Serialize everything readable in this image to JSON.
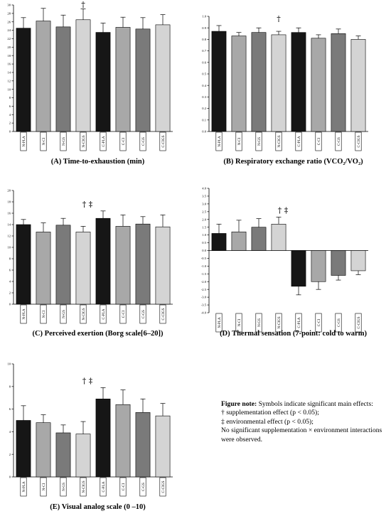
{
  "chart_data": [
    {
      "type": "bar",
      "title": "(A) Time-to-exhaustion (min)",
      "categories": [
        "N-PLA",
        "N-CI",
        "N-GS",
        "N-CIGS",
        "C-PLA",
        "C-CI",
        "C-GS",
        "C-CIGS"
      ],
      "values": [
        24.5,
        26.2,
        24.8,
        26.5,
        23.5,
        24.7,
        24.3,
        25.3
      ],
      "errors": [
        2.5,
        3.0,
        2.8,
        2.6,
        2.2,
        2.4,
        2.7,
        2.4
      ],
      "ylim": [
        0,
        30
      ],
      "yticks": [
        "0",
        "2",
        "4",
        "6",
        "8",
        "10",
        "12",
        "14",
        "16",
        "18",
        "20",
        "22",
        "24",
        "26",
        "28",
        "30"
      ],
      "annotation": "†",
      "annotation_index": 3
    },
    {
      "type": "bar",
      "title": "(B) Respiratory exchange ratio (VCO₂/VO₂)",
      "categories": [
        "N-PLA",
        "N-CI",
        "N-GS",
        "N-CIGS",
        "C-PLA",
        "C-CI",
        "C-GS",
        "C-CIGS"
      ],
      "values": [
        0.87,
        0.83,
        0.86,
        0.84,
        0.86,
        0.81,
        0.85,
        0.8
      ],
      "errors": [
        0.05,
        0.03,
        0.04,
        0.03,
        0.04,
        0.03,
        0.04,
        0.03
      ],
      "ylim": [
        0,
        1.0
      ],
      "yticks": [
        "0.0",
        "0.1",
        "0.2",
        "0.3",
        "0.4",
        "0.5",
        "0.6",
        "0.7",
        "0.8",
        "0.9",
        "1.0"
      ],
      "annotation": "†",
      "annotation_index": 3
    },
    {
      "type": "bar",
      "title": "(C) Perceived exertion (Borg scale[6–20])",
      "categories": [
        "N-PLA",
        "N-CI",
        "N-GS",
        "N-CIGS",
        "C-PLA",
        "C-CI",
        "C-GS",
        "C-CIGS"
      ],
      "values": [
        14.0,
        12.7,
        13.9,
        12.7,
        15.1,
        13.7,
        14.1,
        13.6
      ],
      "errors": [
        0.9,
        1.6,
        1.2,
        1.0,
        1.3,
        2.0,
        1.3,
        2.1
      ],
      "ylim": [
        0,
        20
      ],
      "yticks": [
        "0",
        "2",
        "4",
        "6",
        "8",
        "10",
        "12",
        "14",
        "16",
        "18",
        "20"
      ],
      "annotation": "†  ‡",
      "annotation_index": 3
    },
    {
      "type": "bar",
      "title": "(D) Thermal sensation (7-point: cold to warm)",
      "categories": [
        "N-PLA",
        "N-CI",
        "N-GS",
        "N-CIGS",
        "C-PLA",
        "C-CI",
        "C-GS",
        "C-CIGS"
      ],
      "values": [
        1.1,
        1.2,
        1.5,
        1.7,
        -2.3,
        -2.0,
        -1.6,
        -1.3
      ],
      "errors": [
        0.6,
        0.75,
        0.55,
        0.45,
        0.55,
        0.5,
        0.3,
        0.25
      ],
      "ylim": [
        -4,
        4
      ],
      "yticks": [
        "-4.0",
        "-3.5",
        "-3.0",
        "-2.5",
        "-2.0",
        "-1.5",
        "-1.0",
        "-0.5",
        "0.0",
        "0.5",
        "1.0",
        "1.5",
        "2.0",
        "2.5",
        "3.0",
        "3.5",
        "4.0"
      ],
      "annotation": "†  ‡",
      "annotation_index": 3
    },
    {
      "type": "bar",
      "title": "(E) Visual analog scale (0 –10)",
      "categories": [
        "N-PLA",
        "N-CI",
        "N-GS",
        "N-CIGS",
        "C-PLA",
        "C-CI",
        "C-GS",
        "C-CIGS"
      ],
      "values": [
        5.0,
        4.8,
        3.9,
        3.8,
        6.9,
        6.4,
        5.7,
        5.4
      ],
      "errors": [
        1.3,
        0.7,
        0.7,
        1.1,
        1.0,
        1.3,
        1.2,
        1.1
      ],
      "ylim": [
        0,
        10
      ],
      "yticks": [
        "0",
        "2",
        "4",
        "6",
        "8",
        "10"
      ],
      "annotation": "†  ‡",
      "annotation_index": 3
    }
  ],
  "bar_colors": [
    "#161616",
    "#a8a8a8",
    "#7a7a7a",
    "#d4d4d4",
    "#161616",
    "#a8a8a8",
    "#7a7a7a",
    "#d4d4d4"
  ],
  "note": {
    "label": "Figure note:",
    "intro": "Symbols indicate significant main effects:",
    "line1": "† supplementation effect (p < 0.05);",
    "line2": "‡ environmental effect (p < 0.05);",
    "line3": "No significant supplementation × environment interactions were observed."
  }
}
